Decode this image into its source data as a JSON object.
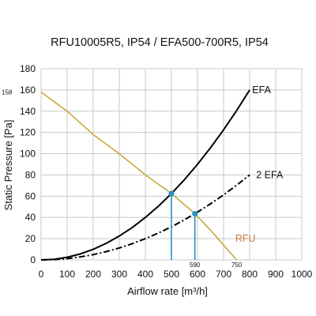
{
  "chart_data": {
    "type": "line",
    "title": "RFU10005R5, IP54 / EFA500-700R5, IP54",
    "xlabel": "Airflow rate [m³/h]",
    "ylabel": "Static Pressure [Pa]",
    "xlim": [
      0,
      1000
    ],
    "ylim": [
      0,
      180
    ],
    "xticks": [
      "0",
      "100",
      "200",
      "300",
      "400",
      "500",
      "600",
      "700",
      "800",
      "900",
      "1000"
    ],
    "yticks": [
      "0",
      "20",
      "40",
      "60",
      "80",
      "100",
      "120",
      "140",
      "160",
      "180"
    ],
    "grid": true,
    "annotations": {
      "y_158": "158",
      "x_590": "590",
      "x_750": "750"
    },
    "colors": {
      "efa": "#000000",
      "two_efa": "#000000",
      "rfu": "#c8aa3c",
      "rfu_label": "#c87a3e",
      "operating_point": "#2a8fc9",
      "grid": "#c8c8c8"
    },
    "series": [
      {
        "name": "EFA",
        "style": "solid",
        "x": [
          0,
          50,
          100,
          150,
          200,
          250,
          300,
          350,
          400,
          450,
          500,
          550,
          600,
          650,
          700,
          750,
          800
        ],
        "y": [
          0,
          0.6,
          2.5,
          5.6,
          10,
          15.6,
          22.5,
          30.6,
          40,
          50.6,
          62.5,
          75.6,
          90,
          105.6,
          122.5,
          140.6,
          160
        ]
      },
      {
        "name": "2 EFA",
        "style": "dashdot",
        "x": [
          0,
          50,
          100,
          150,
          200,
          250,
          300,
          350,
          400,
          450,
          500,
          550,
          600,
          650,
          700,
          750,
          800
        ],
        "y": [
          0,
          0.3,
          1.2,
          2.8,
          5,
          7.8,
          11.2,
          15.3,
          20,
          25.3,
          31.2,
          37.8,
          45,
          52.8,
          61.2,
          70.3,
          80
        ]
      },
      {
        "name": "RFU",
        "style": "solid",
        "x": [
          0,
          100,
          200,
          300,
          400,
          500,
          590,
          650,
          700,
          750
        ],
        "y": [
          158,
          140,
          118,
          100,
          80,
          62.5,
          43.5,
          28,
          14,
          0
        ]
      }
    ],
    "operating_points": [
      {
        "x": 500,
        "y": 62.5
      },
      {
        "x": 590,
        "y": 43.5
      }
    ],
    "series_labels": [
      {
        "text": "EFA",
        "x": 810,
        "y": 160
      },
      {
        "text": "2 EFA",
        "x": 825,
        "y": 80
      },
      {
        "text": "RFU",
        "x": 745,
        "y": 20
      }
    ]
  }
}
